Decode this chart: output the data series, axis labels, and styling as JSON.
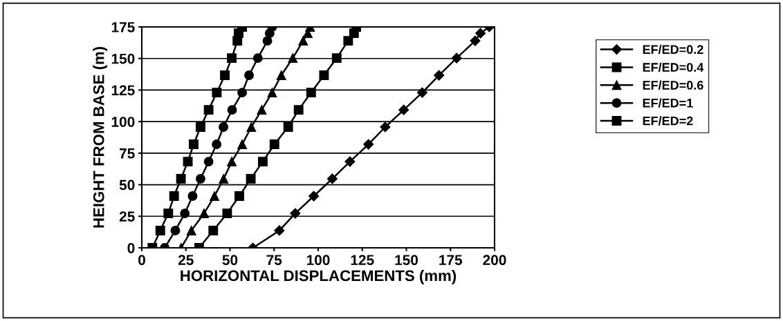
{
  "chart_data": {
    "type": "line",
    "xlabel": "HORIZONTAL DISPLACEMENTS (mm)",
    "ylabel": "HEIGHT FROM BASE (m)",
    "xlim": [
      0,
      200
    ],
    "xticks": [
      0,
      25,
      50,
      75,
      100,
      125,
      150,
      175,
      200
    ],
    "ylim": [
      0,
      175
    ],
    "yticks": [
      0,
      25,
      50,
      75,
      100,
      125,
      150,
      175
    ],
    "grid": "y",
    "legend": "right",
    "line_style": "solid",
    "series": [
      {
        "name": "EF/ED=0.2",
        "color": "#000000",
        "marker": "diamond",
        "x": [
          63,
          78,
          87,
          97.5,
          108,
          118,
          128.5,
          138,
          148.5,
          159,
          168.5,
          178.5,
          189,
          192,
          197
        ],
        "values": [
          0,
          13.7,
          27.3,
          41,
          54.7,
          68.3,
          82,
          95.7,
          109.3,
          123,
          136.7,
          150.3,
          164,
          170,
          175
        ]
      },
      {
        "name": "EF/ED=0.4",
        "color": "#000000",
        "marker": "square",
        "x": [
          32.5,
          40.5,
          48.4,
          55.3,
          61.8,
          68.6,
          75.2,
          83,
          88.9,
          96,
          103.3,
          110.5,
          117,
          120.3,
          121.6
        ],
        "values": [
          0,
          13.7,
          27.3,
          41,
          54.7,
          68.3,
          82,
          95.7,
          109.3,
          123,
          136.7,
          150.3,
          164,
          170,
          175
        ]
      },
      {
        "name": "EF/ED=0.6",
        "color": "#000000",
        "marker": "triangle",
        "x": [
          22.3,
          28.1,
          35.3,
          41.2,
          46.4,
          51,
          56.9,
          62.1,
          68,
          73.9,
          79.1,
          85.6,
          91.5,
          94.1,
          95.4
        ],
        "values": [
          0,
          13.7,
          27.3,
          41,
          54.7,
          68.3,
          82,
          95.7,
          109.3,
          123,
          136.7,
          150.3,
          164,
          170,
          175
        ]
      },
      {
        "name": "EF/ED=1",
        "color": "#000000",
        "marker": "circle",
        "x": [
          13,
          19,
          24.4,
          28.8,
          33.3,
          37.9,
          42.4,
          46.3,
          51.2,
          56.9,
          60.8,
          65.8,
          71.2,
          72.5,
          73.9
        ],
        "values": [
          0,
          13.7,
          27.3,
          41,
          54.7,
          68.3,
          82,
          95.7,
          109.3,
          123,
          136.7,
          150.3,
          164,
          170,
          175
        ]
      },
      {
        "name": "EF/ED=2",
        "color": "#000000",
        "marker": "square",
        "x": [
          6,
          10.5,
          15,
          18.3,
          22.2,
          26.1,
          29.4,
          33.3,
          37.9,
          42.5,
          47.1,
          51,
          54.2,
          54.9,
          56.9
        ],
        "values": [
          0,
          13.7,
          27.3,
          41,
          54.7,
          68.3,
          82,
          95.7,
          109.3,
          123,
          136.7,
          150.3,
          164,
          170,
          175
        ]
      }
    ]
  }
}
